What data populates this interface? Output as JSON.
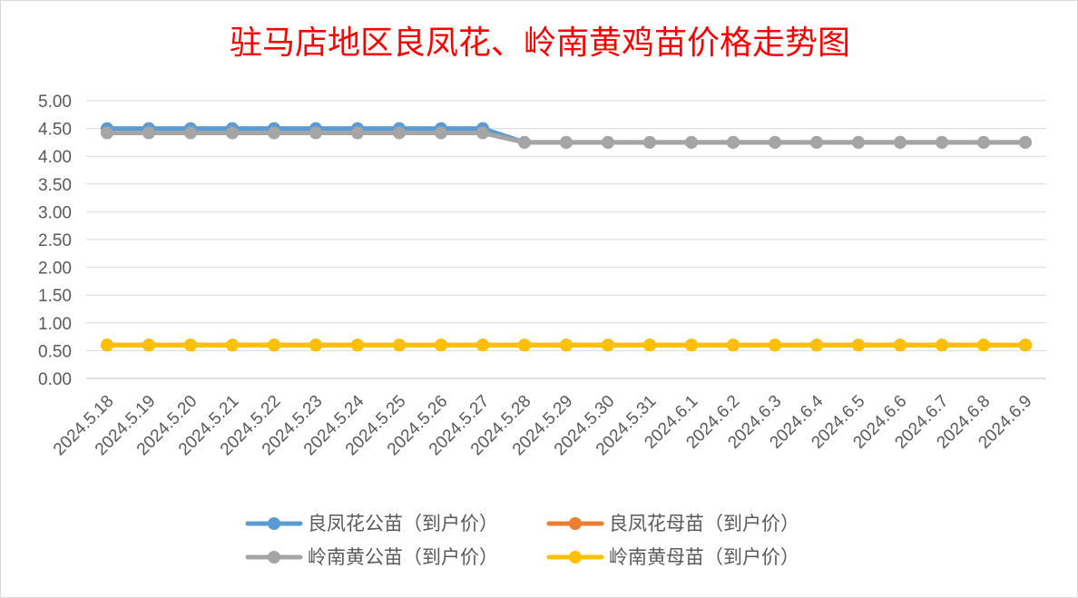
{
  "chart_data": {
    "type": "line",
    "title": "驻马店地区良凤花、岭南黄鸡苗价格走势图",
    "xlabel": "",
    "ylabel": "",
    "ylim": [
      0,
      5
    ],
    "y_ticks": [
      "0.00",
      "0.50",
      "1.00",
      "1.50",
      "2.00",
      "2.50",
      "3.00",
      "3.50",
      "4.00",
      "4.50",
      "5.00"
    ],
    "grid": true,
    "legend_position": "bottom",
    "categories": [
      "2024.5.18",
      "2024.5.19",
      "2024.5.20",
      "2024.5.21",
      "2024.5.22",
      "2024.5.23",
      "2024.5.24",
      "2024.5.25",
      "2024.5.26",
      "2024.5.27",
      "2024.5.28",
      "2024.5.29",
      "2024.5.30",
      "2024.5.31",
      "2024.6.1",
      "2024.6.2",
      "2024.6.3",
      "2024.6.4",
      "2024.6.5",
      "2024.6.6",
      "2024.6.7",
      "2024.6.8",
      "2024.6.9"
    ],
    "series": [
      {
        "name": "良凤花公苗（到户价）",
        "color": "#5b9bd5",
        "values": [
          4.5,
          4.5,
          4.5,
          4.5,
          4.5,
          4.5,
          4.5,
          4.5,
          4.5,
          4.5,
          4.25,
          4.25,
          4.25,
          4.25,
          4.25,
          4.25,
          4.25,
          4.25,
          4.25,
          4.25,
          4.25,
          4.25,
          4.25
        ]
      },
      {
        "name": "良凤花母苗（到户价）",
        "color": "#ed7d31",
        "values": [
          0.6,
          0.6,
          0.6,
          0.6,
          0.6,
          0.6,
          0.6,
          0.6,
          0.6,
          0.6,
          0.6,
          0.6,
          0.6,
          0.6,
          0.6,
          0.6,
          0.6,
          0.6,
          0.6,
          0.6,
          0.6,
          0.6,
          0.6
        ]
      },
      {
        "name": "岭南黄公苗（到户价）",
        "color": "#a5a5a5",
        "values": [
          4.42,
          4.42,
          4.42,
          4.42,
          4.42,
          4.42,
          4.42,
          4.42,
          4.42,
          4.42,
          4.25,
          4.25,
          4.25,
          4.25,
          4.25,
          4.25,
          4.25,
          4.25,
          4.25,
          4.25,
          4.25,
          4.25,
          4.25
        ]
      },
      {
        "name": "岭南黄母苗（到户价）",
        "color": "#ffc000",
        "values": [
          0.6,
          0.6,
          0.6,
          0.6,
          0.6,
          0.6,
          0.6,
          0.6,
          0.6,
          0.6,
          0.6,
          0.6,
          0.6,
          0.6,
          0.6,
          0.6,
          0.6,
          0.6,
          0.6,
          0.6,
          0.6,
          0.6,
          0.6
        ]
      }
    ],
    "draw_order": [
      0,
      1,
      2,
      3
    ]
  }
}
